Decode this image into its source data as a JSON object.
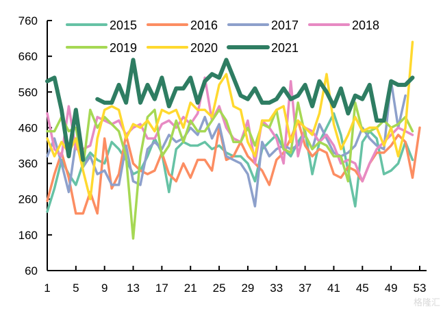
{
  "chart_data": {
    "type": "line",
    "title": "",
    "xlabel": "",
    "ylabel": "",
    "xlim": [
      1,
      53
    ],
    "ylim": [
      60,
      760
    ],
    "x_ticks": [
      1,
      5,
      9,
      13,
      17,
      21,
      25,
      29,
      33,
      37,
      41,
      45,
      49,
      53
    ],
    "y_ticks": [
      60,
      160,
      260,
      360,
      460,
      560,
      660,
      760
    ],
    "grid": false,
    "legend_position": "top",
    "series": [
      {
        "name": "2015",
        "color": "#66c2a5",
        "values": [
          225,
          290,
          370,
          330,
          300,
          360,
          390,
          370,
          360,
          420,
          400,
          370,
          330,
          340,
          380,
          430,
          390,
          280,
          400,
          420,
          410,
          410,
          420,
          400,
          410,
          390,
          380,
          380,
          360,
          310,
          400,
          420,
          440,
          400,
          380,
          420,
          450,
          330,
          420,
          460,
          500,
          440,
          340,
          240,
          420,
          450,
          430,
          330,
          340,
          360,
          420,
          370
        ]
      },
      {
        "name": "2016",
        "color": "#fc8d62",
        "values": [
          255,
          330,
          390,
          320,
          220,
          220,
          280,
          220,
          430,
          290,
          330,
          440,
          360,
          340,
          330,
          340,
          390,
          330,
          310,
          360,
          320,
          370,
          370,
          340,
          460,
          370,
          380,
          420,
          380,
          360,
          340,
          300,
          370,
          390,
          430,
          480,
          410,
          380,
          400,
          390,
          330,
          320,
          350,
          340,
          310,
          360,
          390,
          390,
          410,
          440,
          420,
          320,
          460
        ]
      },
      {
        "name": "2017",
        "color": "#8da0cb",
        "values": [
          380,
          430,
          360,
          280,
          420,
          350,
          380,
          330,
          340,
          300,
          300,
          410,
          310,
          300,
          400,
          420,
          400,
          440,
          420,
          430,
          460,
          440,
          490,
          430,
          470,
          380,
          370,
          360,
          330,
          240,
          420,
          380,
          400,
          410,
          400,
          410,
          440,
          400,
          470,
          430,
          390,
          380,
          390,
          410,
          460,
          430,
          410,
          400,
          590,
          460,
          550
        ]
      },
      {
        "name": "2018",
        "color": "#e78ac3",
        "values": [
          500,
          400,
          380,
          520,
          400,
          400,
          410,
          490,
          480,
          470,
          480,
          440,
          460,
          470,
          430,
          430,
          470,
          480,
          460,
          490,
          470,
          500,
          600,
          480,
          520,
          460,
          430,
          420,
          480,
          360,
          480,
          460,
          430,
          360,
          590,
          380,
          460,
          450,
          420,
          440,
          410,
          360,
          370,
          360,
          310,
          360,
          400,
          420,
          440,
          460,
          450,
          440
        ]
      },
      {
        "name": "2019",
        "color": "#a6d854",
        "values": [
          450,
          450,
          490,
          450,
          460,
          350,
          510,
          460,
          490,
          470,
          450,
          380,
          150,
          380,
          490,
          510,
          380,
          410,
          480,
          420,
          480,
          450,
          450,
          480,
          510,
          480,
          420,
          420,
          460,
          410,
          470,
          460,
          510,
          400,
          390,
          530,
          440,
          400,
          420,
          410,
          380,
          380,
          310,
          530,
          450,
          450,
          460,
          480,
          460,
          470,
          490,
          450
        ]
      },
      {
        "name": "2020",
        "color": "#ffd92f",
        "values": [
          430,
          380,
          420,
          390,
          430,
          340,
          260,
          430,
          510,
          520,
          510,
          430,
          470,
          460,
          480,
          450,
          510,
          500,
          510,
          460,
          530,
          510,
          510,
          490,
          580,
          610,
          520,
          510,
          420,
          380,
          480,
          480,
          510,
          520,
          420,
          480,
          460,
          440,
          500,
          610,
          470,
          400,
          440,
          490,
          450,
          460,
          460,
          410,
          460,
          380,
          460,
          700
        ]
      },
      {
        "name": "2021",
        "color": "#2e7d62",
        "values": [
          590,
          600,
          510,
          380,
          510,
          370,
          null,
          540,
          530,
          530,
          580,
          530,
          650,
          530,
          580,
          540,
          600,
          520,
          570,
          570,
          600,
          530,
          590,
          610,
          600,
          650,
          600,
          550,
          540,
          570,
          530,
          530,
          540,
          570,
          540,
          550,
          580,
          520,
          590,
          560,
          520,
          570,
          500,
          550,
          540,
          580,
          480,
          480,
          590,
          580,
          580,
          600
        ]
      }
    ]
  },
  "watermark": "格隆汇"
}
